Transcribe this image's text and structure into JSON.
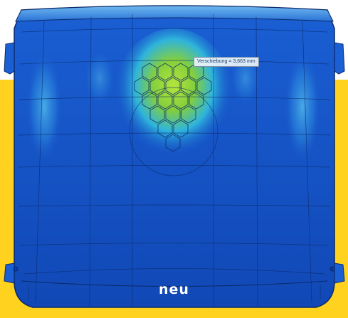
{
  "image": {
    "measurement_label": "Verschiebung = 3,663 mm",
    "version_label": "neu",
    "colors": {
      "background_accent": "#ffd21f",
      "panel_base": "#1552c8",
      "panel_dark": "#0c3aa0",
      "stress_peak": "#8fd23a",
      "stress_mid": "#2fb0e0",
      "mesh_lines": "#0a2a6a"
    }
  }
}
